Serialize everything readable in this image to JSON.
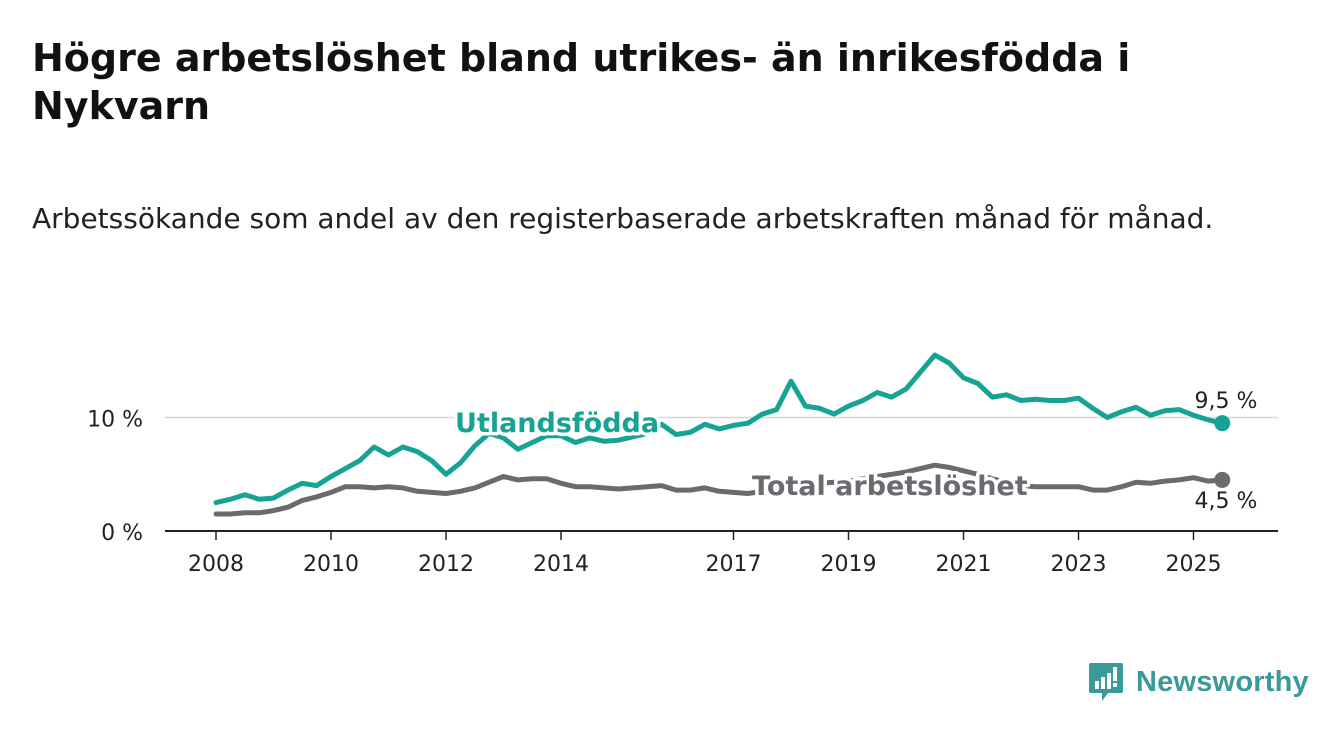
{
  "title": "Högre arbetslöshet bland utrikes- än inrikesfödda i Nykvarn",
  "subtitle": "Arbetssökande som andel av den registerbaserade arbetskraften månad för månad.",
  "logo": {
    "text": "Newsworthy",
    "icon": "newsworthy-logo-icon",
    "color": "#3a9a99"
  },
  "chart_data": {
    "type": "line",
    "x_ticks": [
      "2008",
      "2010",
      "2012",
      "2014",
      "2017",
      "2019",
      "2021",
      "2023",
      "2025"
    ],
    "y_ticks": [
      {
        "value": 0,
        "label": "0 %"
      },
      {
        "value": 10,
        "label": "10 %"
      }
    ],
    "ylim": [
      0,
      16
    ],
    "grid": true,
    "series": [
      {
        "name": "Utlandsfödda",
        "color": "#16a394",
        "end_label": "9,5 %",
        "points": [
          [
            "2008-01",
            2.5
          ],
          [
            "2008-04",
            2.8
          ],
          [
            "2008-07",
            3.2
          ],
          [
            "2008-10",
            2.8
          ],
          [
            "2009-01",
            2.9
          ],
          [
            "2009-04",
            3.6
          ],
          [
            "2009-07",
            4.2
          ],
          [
            "2009-10",
            4.0
          ],
          [
            "2010-01",
            4.8
          ],
          [
            "2010-04",
            5.5
          ],
          [
            "2010-07",
            6.2
          ],
          [
            "2010-10",
            7.4
          ],
          [
            "2011-01",
            6.7
          ],
          [
            "2011-04",
            7.4
          ],
          [
            "2011-07",
            7.0
          ],
          [
            "2011-10",
            6.2
          ],
          [
            "2012-01",
            5.0
          ],
          [
            "2012-04",
            6.0
          ],
          [
            "2012-07",
            7.5
          ],
          [
            "2012-10",
            8.6
          ],
          [
            "2013-01",
            8.2
          ],
          [
            "2013-04",
            7.2
          ],
          [
            "2013-07",
            7.8
          ],
          [
            "2013-10",
            8.4
          ],
          [
            "2014-01",
            8.4
          ],
          [
            "2014-04",
            7.8
          ],
          [
            "2014-07",
            8.2
          ],
          [
            "2014-10",
            7.9
          ],
          [
            "2015-01",
            8.0
          ],
          [
            "2015-04",
            8.3
          ],
          [
            "2015-07",
            8.6
          ],
          [
            "2015-10",
            9.4
          ],
          [
            "2016-01",
            8.5
          ],
          [
            "2016-04",
            8.7
          ],
          [
            "2016-07",
            9.4
          ],
          [
            "2016-10",
            9.0
          ],
          [
            "2017-01",
            9.3
          ],
          [
            "2017-04",
            9.5
          ],
          [
            "2017-07",
            10.3
          ],
          [
            "2017-10",
            10.7
          ],
          [
            "2018-01",
            13.2
          ],
          [
            "2018-04",
            11.0
          ],
          [
            "2018-07",
            10.8
          ],
          [
            "2018-10",
            10.3
          ],
          [
            "2019-01",
            11.0
          ],
          [
            "2019-04",
            11.5
          ],
          [
            "2019-07",
            12.2
          ],
          [
            "2019-10",
            11.8
          ],
          [
            "2020-01",
            12.5
          ],
          [
            "2020-04",
            14.0
          ],
          [
            "2020-07",
            15.5
          ],
          [
            "2020-10",
            14.8
          ],
          [
            "2021-01",
            13.5
          ],
          [
            "2021-04",
            13.0
          ],
          [
            "2021-07",
            11.8
          ],
          [
            "2021-10",
            12.0
          ],
          [
            "2022-01",
            11.5
          ],
          [
            "2022-04",
            11.6
          ],
          [
            "2022-07",
            11.5
          ],
          [
            "2022-10",
            11.5
          ],
          [
            "2023-01",
            11.7
          ],
          [
            "2023-04",
            10.8
          ],
          [
            "2023-07",
            10.0
          ],
          [
            "2023-10",
            10.5
          ],
          [
            "2024-01",
            10.9
          ],
          [
            "2024-04",
            10.2
          ],
          [
            "2024-07",
            10.6
          ],
          [
            "2024-10",
            10.7
          ],
          [
            "2025-01",
            10.2
          ],
          [
            "2025-04",
            9.8
          ],
          [
            "2025-07",
            9.5
          ]
        ]
      },
      {
        "name": "Total arbetslöshet",
        "color": "#6a6a70",
        "end_label": "4,5 %",
        "points": [
          [
            "2008-01",
            1.5
          ],
          [
            "2008-04",
            1.5
          ],
          [
            "2008-07",
            1.6
          ],
          [
            "2008-10",
            1.6
          ],
          [
            "2009-01",
            1.8
          ],
          [
            "2009-04",
            2.1
          ],
          [
            "2009-07",
            2.7
          ],
          [
            "2009-10",
            3.0
          ],
          [
            "2010-01",
            3.4
          ],
          [
            "2010-04",
            3.9
          ],
          [
            "2010-07",
            3.9
          ],
          [
            "2010-10",
            3.8
          ],
          [
            "2011-01",
            3.9
          ],
          [
            "2011-04",
            3.8
          ],
          [
            "2011-07",
            3.5
          ],
          [
            "2011-10",
            3.4
          ],
          [
            "2012-01",
            3.3
          ],
          [
            "2012-04",
            3.5
          ],
          [
            "2012-07",
            3.8
          ],
          [
            "2012-10",
            4.3
          ],
          [
            "2013-01",
            4.8
          ],
          [
            "2013-04",
            4.5
          ],
          [
            "2013-07",
            4.6
          ],
          [
            "2013-10",
            4.6
          ],
          [
            "2014-01",
            4.2
          ],
          [
            "2014-04",
            3.9
          ],
          [
            "2014-07",
            3.9
          ],
          [
            "2014-10",
            3.8
          ],
          [
            "2015-01",
            3.7
          ],
          [
            "2015-04",
            3.8
          ],
          [
            "2015-07",
            3.9
          ],
          [
            "2015-10",
            4.0
          ],
          [
            "2016-01",
            3.6
          ],
          [
            "2016-04",
            3.6
          ],
          [
            "2016-07",
            3.8
          ],
          [
            "2016-10",
            3.5
          ],
          [
            "2017-01",
            3.4
          ],
          [
            "2017-04",
            3.3
          ],
          [
            "2017-07",
            3.5
          ],
          [
            "2017-10",
            3.8
          ],
          [
            "2018-01",
            4.0
          ],
          [
            "2018-04",
            4.1
          ],
          [
            "2018-07",
            4.2
          ],
          [
            "2018-10",
            4.3
          ],
          [
            "2019-01",
            4.4
          ],
          [
            "2019-04",
            4.6
          ],
          [
            "2019-07",
            4.8
          ],
          [
            "2019-10",
            5.0
          ],
          [
            "2020-01",
            5.2
          ],
          [
            "2020-04",
            5.5
          ],
          [
            "2020-07",
            5.8
          ],
          [
            "2020-10",
            5.6
          ],
          [
            "2021-01",
            5.3
          ],
          [
            "2021-04",
            5.0
          ],
          [
            "2021-07",
            4.6
          ],
          [
            "2021-10",
            4.3
          ],
          [
            "2022-01",
            4.0
          ],
          [
            "2022-04",
            3.9
          ],
          [
            "2022-07",
            3.9
          ],
          [
            "2022-10",
            3.9
          ],
          [
            "2023-01",
            3.9
          ],
          [
            "2023-04",
            3.6
          ],
          [
            "2023-07",
            3.6
          ],
          [
            "2023-10",
            3.9
          ],
          [
            "2024-01",
            4.3
          ],
          [
            "2024-04",
            4.2
          ],
          [
            "2024-07",
            4.4
          ],
          [
            "2024-10",
            4.5
          ],
          [
            "2025-01",
            4.7
          ],
          [
            "2025-04",
            4.4
          ],
          [
            "2025-07",
            4.5
          ]
        ]
      }
    ]
  }
}
